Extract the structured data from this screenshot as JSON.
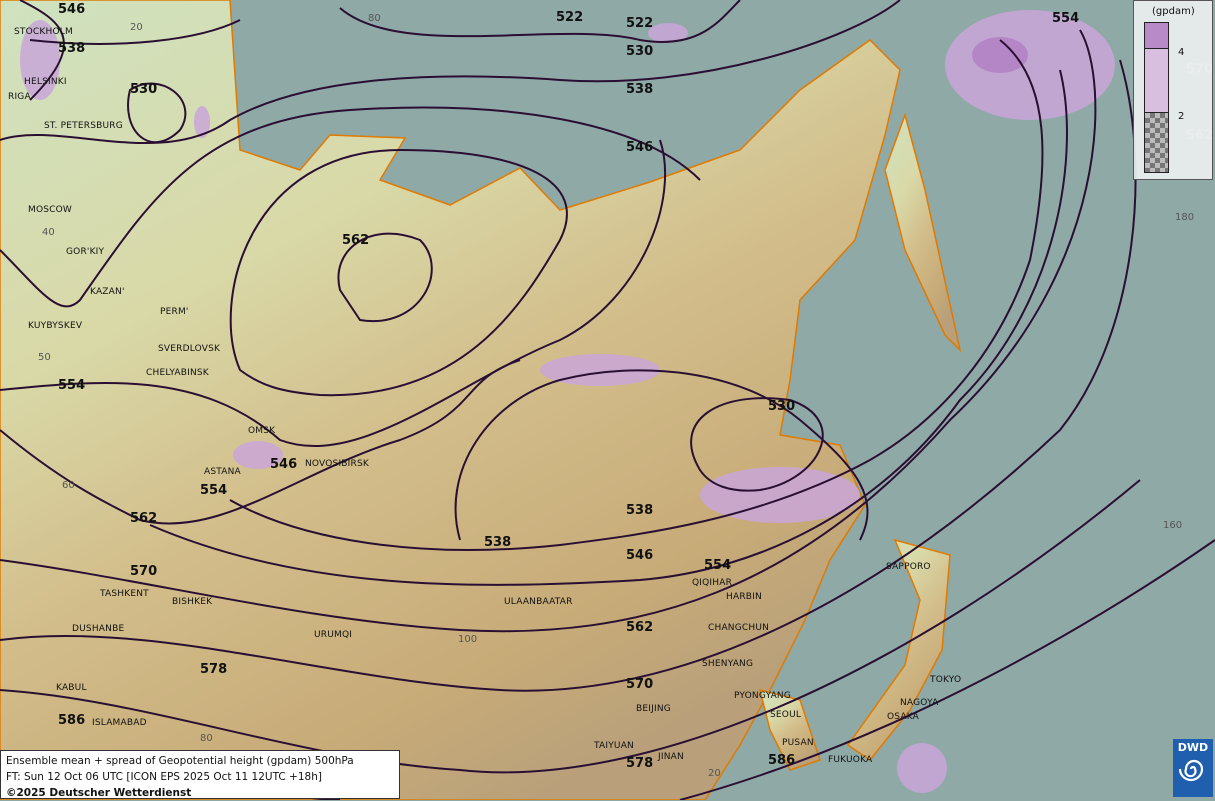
{
  "info": {
    "title": "Ensemble mean + spread of Geopotential height (gpdam) 500hPa",
    "forecast_time": "FT: Sun 12 Oct 06 UTC [ICON EPS 2025 Oct 11 12UTC +18h]",
    "copyright": "©2025 Deutscher Wetterdienst"
  },
  "legend": {
    "unit": "(gpdam)",
    "ticks": [
      "4",
      "2"
    ],
    "colors": {
      "above_4": "#b98ac8",
      "2_to_4": "#d8bfdf",
      "below_2": "checkerboard-gray"
    }
  },
  "logo": {
    "text": "DWD",
    "icon": "dwd-swirl-icon",
    "color": "#1f5fae"
  },
  "colors": {
    "sea": "#8fa9a6",
    "contour": "#2a0f33",
    "spread": "#c9a6d8",
    "coastline": "#e07a00"
  },
  "cities": [
    "STOCKHOLM",
    "HELSINKI",
    "RIGA",
    "ST. PETERSBURG",
    "MOSCOW",
    "GOR'KIY",
    "KAZAN'",
    "PERM'",
    "KUYBYSKEV",
    "SVERDLOVSK",
    "CHELYABINSK",
    "OMSK",
    "NOVOSIBIRSK",
    "ASTANA",
    "TASHKENT",
    "BISHKEK",
    "DUSHANBE",
    "KABUL",
    "ISLAMABAD",
    "URUMQI",
    "ULAANBAATAR",
    "QIQIHAR",
    "HARBIN",
    "CHANGCHUN",
    "SHENYANG",
    "PYONGYANG",
    "SEOUL",
    "BEIJING",
    "TAIYUAN",
    "JINAN",
    "PUSAN",
    "FUKUOKA",
    "OSAKA",
    "NAGOYA",
    "TOKYO",
    "SAPPORO"
  ],
  "contour_labels": [
    "546",
    "538",
    "530",
    "522",
    "522",
    "530",
    "538",
    "546",
    "554",
    "562",
    "554",
    "546",
    "554",
    "562",
    "570",
    "578",
    "586",
    "538",
    "546",
    "554",
    "562",
    "570",
    "578",
    "586",
    "530",
    "538",
    "570",
    "562"
  ],
  "grid_labels": [
    "20",
    "80",
    "40",
    "50",
    "60",
    "100",
    "80",
    "20",
    "160",
    "180"
  ]
}
